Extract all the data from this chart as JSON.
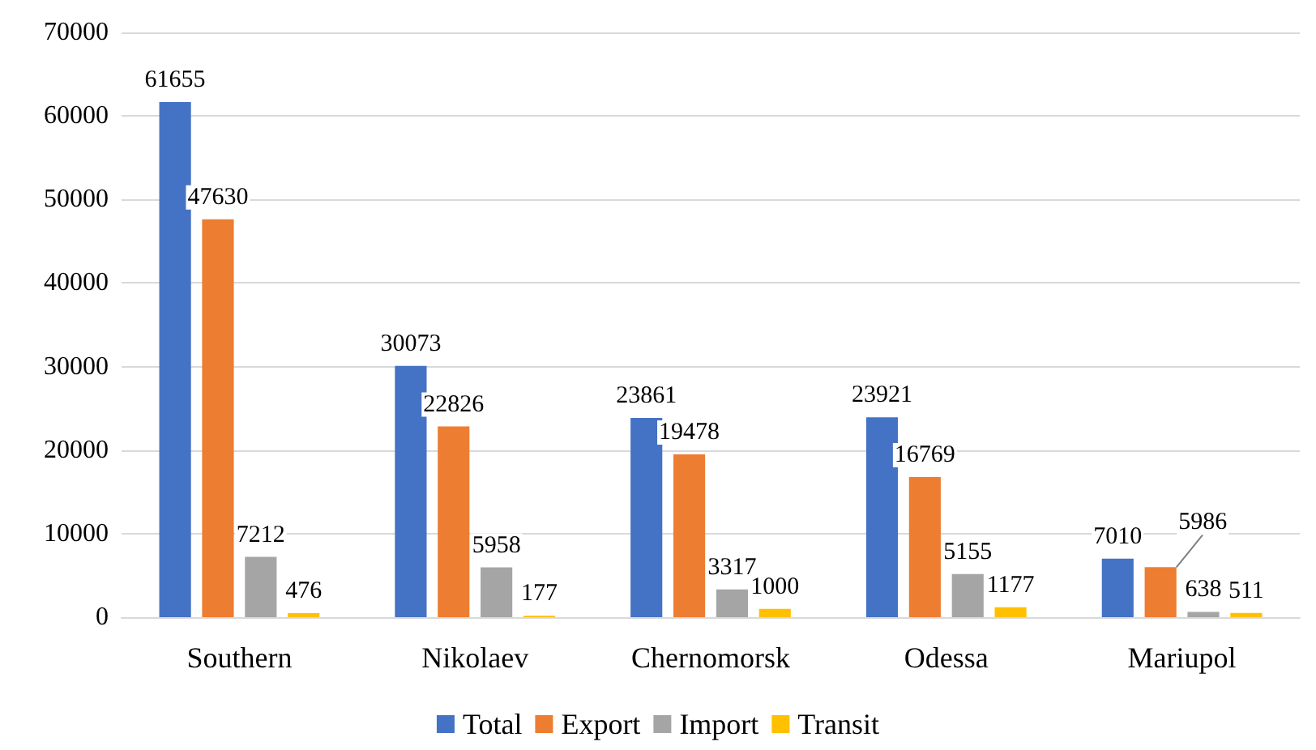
{
  "chart_data": {
    "type": "bar",
    "categories": [
      "Southern",
      "Nikolaev",
      "Chernomorsk",
      "Odessa",
      "Mariupol"
    ],
    "series": [
      {
        "name": "Total",
        "color": "#4472c4",
        "values": [
          61655,
          30073,
          23861,
          23921,
          7010
        ]
      },
      {
        "name": "Export",
        "color": "#ed7d31",
        "values": [
          47630,
          22826,
          19478,
          16769,
          5986
        ]
      },
      {
        "name": "Import",
        "color": "#a5a5a5",
        "values": [
          7212,
          5958,
          3317,
          5155,
          638
        ]
      },
      {
        "name": "Transit",
        "color": "#ffc000",
        "values": [
          476,
          177,
          1000,
          1177,
          511
        ]
      }
    ],
    "ylim": [
      0,
      70000
    ],
    "yticks": [
      0,
      10000,
      20000,
      30000,
      40000,
      50000,
      60000,
      70000
    ],
    "grid": "y",
    "legend": "bottom",
    "data_labels": true
  }
}
